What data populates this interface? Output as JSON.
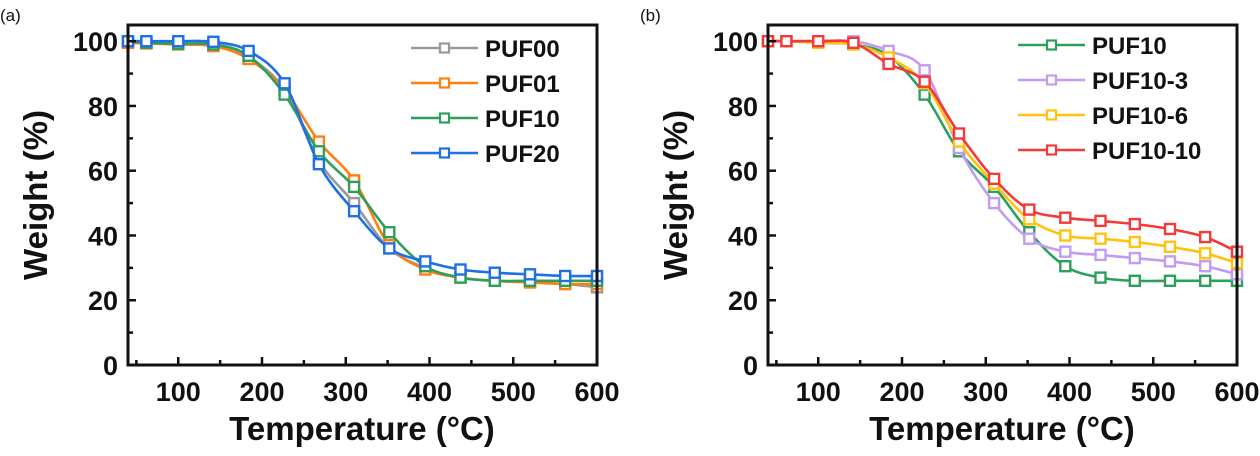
{
  "chart_data": [
    {
      "panel": "(a)",
      "type": "line",
      "title": "",
      "xlabel": "Temperature (°C)",
      "ylabel": "Weight (%)",
      "xlim": [
        40,
        600
      ],
      "ylim": [
        0,
        105
      ],
      "xticks": [
        100,
        200,
        300,
        400,
        500,
        600
      ],
      "yticks": [
        0,
        20,
        40,
        60,
        80,
        100
      ],
      "grid": false,
      "legend_position": "top-right",
      "x": [
        40,
        62,
        100,
        142,
        184,
        227,
        268,
        310,
        352,
        395,
        437,
        478,
        520,
        562,
        600
      ],
      "series": [
        {
          "name": "PUF00",
          "color": "#999999",
          "values": [
            100,
            99.5,
            99,
            98.5,
            95,
            85,
            63,
            50,
            36,
            30,
            27,
            26,
            25.5,
            25,
            24
          ]
        },
        {
          "name": "PUF01",
          "color": "#ff7f0e",
          "values": [
            99.5,
            99.3,
            99,
            98.5,
            94.5,
            85,
            69,
            57,
            37,
            29.5,
            27,
            26,
            25.5,
            25,
            25
          ]
        },
        {
          "name": "PUF10",
          "color": "#2ca05a",
          "values": [
            100,
            99.5,
            99.2,
            99,
            95.5,
            83.5,
            66,
            55,
            41,
            30.5,
            27,
            26,
            26,
            26,
            26
          ]
        },
        {
          "name": "PUF20",
          "color": "#1f6fe5",
          "values": [
            100,
            100,
            100,
            99.8,
            97,
            87,
            62,
            47.5,
            36,
            32,
            29.5,
            28.5,
            28,
            27.5,
            27.5
          ]
        }
      ]
    },
    {
      "panel": "(b)",
      "type": "line",
      "title": "",
      "xlabel": "Temperature (°C)",
      "ylabel": "Weight (%)",
      "xlim": [
        40,
        600
      ],
      "ylim": [
        0,
        105
      ],
      "xticks": [
        100,
        200,
        300,
        400,
        500,
        600
      ],
      "yticks": [
        0,
        20,
        40,
        60,
        80,
        100
      ],
      "grid": false,
      "legend_position": "top-right",
      "x": [
        40,
        62,
        100,
        142,
        184,
        227,
        268,
        310,
        352,
        395,
        437,
        478,
        520,
        562,
        600
      ],
      "series": [
        {
          "name": "PUF10",
          "color": "#2ca05a",
          "values": [
            100,
            100,
            99.5,
            99,
            95.5,
            83.5,
            66,
            55,
            41,
            30.5,
            27,
            26,
            26,
            26,
            26
          ]
        },
        {
          "name": "PUF10-3",
          "color": "#c39bf0",
          "values": [
            100,
            100,
            100,
            100,
            97,
            91,
            67,
            50,
            39,
            35,
            34,
            33,
            32,
            30.5,
            28
          ]
        },
        {
          "name": "PUF10-6",
          "color": "#ffc20e",
          "values": [
            100,
            100,
            99.5,
            99,
            95,
            87,
            69,
            56,
            45,
            40,
            39,
            38,
            36.5,
            34.5,
            31.5
          ]
        },
        {
          "name": "PUF10-10",
          "color": "#f23a3a",
          "values": [
            100,
            100,
            100,
            99.5,
            93,
            87.5,
            71.5,
            57.5,
            48,
            45.5,
            44.5,
            43.5,
            42,
            39.5,
            35
          ]
        }
      ]
    }
  ]
}
